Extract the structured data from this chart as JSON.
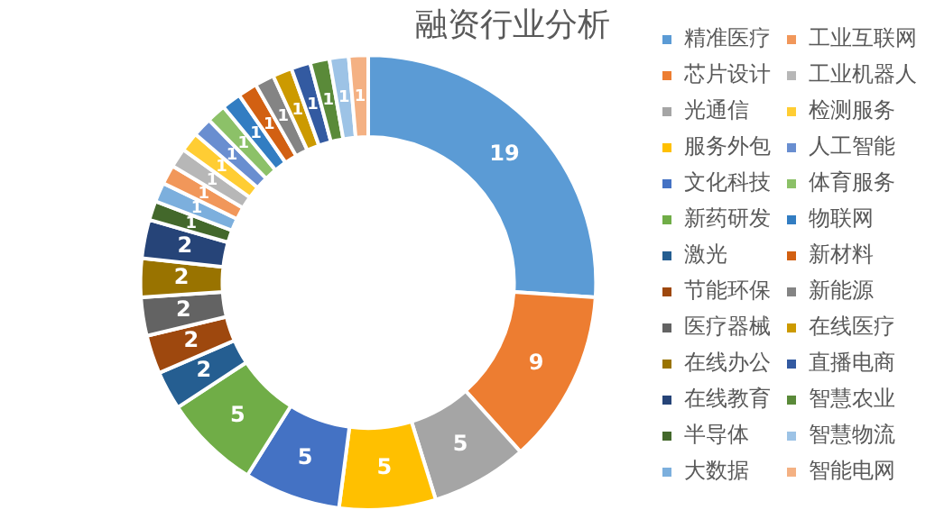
{
  "chart_data": {
    "type": "donut",
    "title": "融资行业分析",
    "categories": [
      "精准医疗",
      "芯片设计",
      "光通信",
      "服务外包",
      "文化科技",
      "新药研发",
      "激光",
      "节能环保",
      "医疗器械",
      "在线办公",
      "在线教育",
      "半导体",
      "大数据",
      "工业互联网",
      "工业机器人",
      "检测服务",
      "人工智能",
      "体育服务",
      "物联网",
      "新材料",
      "新能源",
      "在线医疗",
      "直播电商",
      "智慧农业",
      "智慧物流",
      "智能电网"
    ],
    "values": [
      19,
      9,
      5,
      5,
      5,
      5,
      2,
      2,
      2,
      2,
      2,
      1,
      1,
      1,
      1,
      1,
      1,
      1,
      1,
      1,
      1,
      1,
      1,
      1,
      1,
      1
    ],
    "colors": [
      "#5b9bd5",
      "#ed7d31",
      "#a5a5a5",
      "#ffc000",
      "#4472c4",
      "#70ad47",
      "#255e91",
      "#9e480e",
      "#636363",
      "#997300",
      "#264478",
      "#43682b",
      "#7cafdd",
      "#f1975a",
      "#b7b7b7",
      "#ffcd33",
      "#698ed0",
      "#8cc168",
      "#327dc2",
      "#d26012",
      "#848484",
      "#cc9a00",
      "#335aa1",
      "#5a8a39",
      "#9dc3e6",
      "#f4b183"
    ],
    "data_labels": true,
    "legend": "right"
  }
}
